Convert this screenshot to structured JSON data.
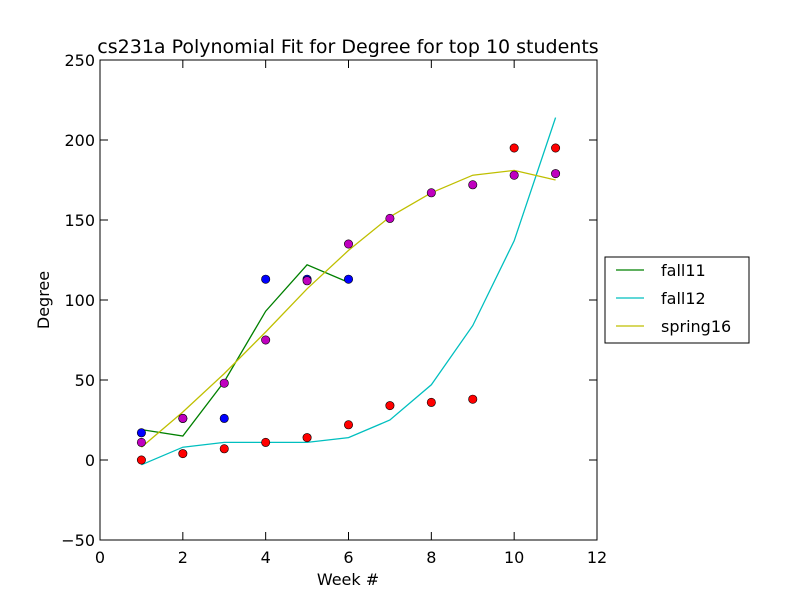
{
  "chart_data": {
    "type": "line",
    "title": "cs231a Polynomial Fit for Degree for top 10 students",
    "xlabel": "Week #",
    "ylabel": "Degree",
    "xlim": [
      0,
      12
    ],
    "ylim": [
      -50,
      250
    ],
    "xticks": [
      "0",
      "2",
      "4",
      "6",
      "8",
      "10",
      "12"
    ],
    "yticks": [
      "−50",
      "0",
      "50",
      "100",
      "150",
      "200",
      "250"
    ],
    "legend_position": "outside-right",
    "series": [
      {
        "name": "fall11",
        "color": "#008000",
        "fit": {
          "x": [
            1,
            2,
            3,
            4,
            5,
            6
          ],
          "y": [
            19,
            15,
            49,
            93,
            122,
            111
          ]
        },
        "points": {
          "color": "#0000ff",
          "x": [
            1,
            2,
            3,
            4,
            5,
            6
          ],
          "y": [
            17,
            26,
            26,
            113,
            113,
            113
          ]
        }
      },
      {
        "name": "fall12",
        "color": "#00bfbf",
        "fit": {
          "x": [
            1,
            2,
            3,
            4,
            5,
            6,
            7,
            8,
            9,
            10,
            11
          ],
          "y": [
            -3,
            8,
            11,
            11,
            11,
            14,
            25,
            47,
            84,
            137,
            214
          ]
        },
        "points": {
          "color": "#ff0000",
          "x": [
            1,
            2,
            3,
            4,
            5,
            6,
            7,
            8,
            9,
            10,
            11
          ],
          "y": [
            0,
            4,
            7,
            11,
            14,
            22,
            34,
            36,
            38,
            195,
            195
          ]
        }
      },
      {
        "name": "spring16",
        "color": "#bfbf00",
        "fit": {
          "x": [
            1,
            2,
            3,
            4,
            5,
            6,
            7,
            8,
            9,
            10,
            11
          ],
          "y": [
            8,
            30,
            54,
            80,
            107,
            131,
            152,
            167,
            178,
            181,
            175
          ]
        },
        "points": {
          "color": "#bf00bf",
          "x": [
            1,
            2,
            3,
            4,
            5,
            6,
            7,
            8,
            9,
            10,
            11
          ],
          "y": [
            11,
            26,
            48,
            75,
            112,
            135,
            151,
            167,
            172,
            178,
            179
          ]
        }
      }
    ]
  }
}
